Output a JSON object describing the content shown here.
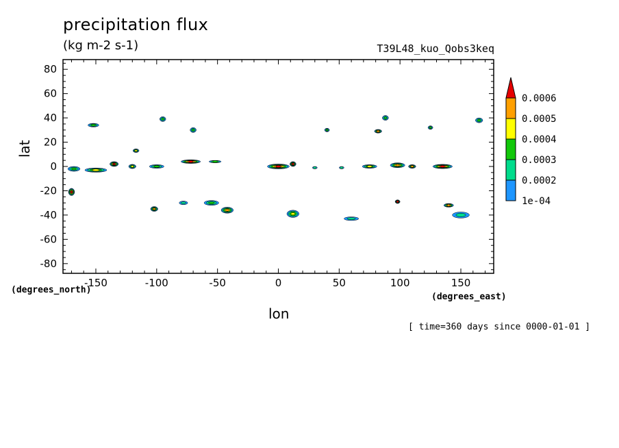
{
  "chart_data": {
    "type": "heatmap",
    "title": "precipitation flux",
    "subtitle": "(kg m-2 s-1)",
    "run_label": "T39L48_kuo_Qobs3keq",
    "xlabel": "lon",
    "ylabel": "lat",
    "x_unit_label": "(degrees_east)",
    "y_unit_label": "(degrees_north)",
    "time_note": "[ time=360 days since 0000-01-01 ]",
    "xlim": [
      -177,
      177
    ],
    "ylim": [
      -88,
      88
    ],
    "x_ticks": [
      -150,
      -100,
      -50,
      0,
      50,
      100,
      150
    ],
    "y_ticks": [
      -80,
      -60,
      -40,
      -20,
      0,
      20,
      40,
      60,
      80
    ],
    "x_tick_labels": [
      "-150",
      "-100",
      "-50",
      "0",
      "50",
      "100",
      "150"
    ],
    "y_tick_labels": [
      "-80",
      "-60",
      "-40",
      "-20",
      "0",
      "20",
      "40",
      "60",
      "80"
    ],
    "colorbar": {
      "levels": [
        0.0001,
        0.0002,
        0.0003,
        0.0004,
        0.0005,
        0.0006
      ],
      "labels": [
        "1e-04",
        "0.0002",
        "0.0003",
        "0.0004",
        "0.0005",
        "0.0006"
      ],
      "colors": [
        "#1e96ff",
        "#00dc8c",
        "#12c80a",
        "#ffff00",
        "#ffa000",
        "#e60000"
      ],
      "extend": "max"
    },
    "features": [
      {
        "lon": -168,
        "lat": -2,
        "wlon": 10,
        "wlat": 4,
        "level": 2
      },
      {
        "lon": -150,
        "lat": -3,
        "wlon": 18,
        "wlat": 3.5,
        "level": 3
      },
      {
        "lon": -135,
        "lat": 2,
        "wlon": 7,
        "wlat": 4,
        "level": 5
      },
      {
        "lon": -120,
        "lat": 0,
        "wlon": 6,
        "wlat": 3.5,
        "level": 3
      },
      {
        "lon": -100,
        "lat": 0,
        "wlon": 12,
        "wlat": 3,
        "level": 2
      },
      {
        "lon": -72,
        "lat": 4,
        "wlon": 16,
        "wlat": 3,
        "level": 5
      },
      {
        "lon": -52,
        "lat": 4,
        "wlon": 10,
        "wlat": 2,
        "level": 2
      },
      {
        "lon": 0,
        "lat": 0,
        "wlon": 18,
        "wlat": 4,
        "level": 5
      },
      {
        "lon": 12,
        "lat": 2,
        "wlon": 5,
        "wlat": 4,
        "level": 5
      },
      {
        "lon": 30,
        "lat": -1,
        "wlon": 4,
        "wlat": 2,
        "level": 1
      },
      {
        "lon": 52,
        "lat": -1,
        "wlon": 4,
        "wlat": 2,
        "level": 1
      },
      {
        "lon": 75,
        "lat": 0,
        "wlon": 12,
        "wlat": 3,
        "level": 3
      },
      {
        "lon": 98,
        "lat": 1,
        "wlon": 12,
        "wlat": 4,
        "level": 4
      },
      {
        "lon": 110,
        "lat": 0,
        "wlon": 6,
        "wlat": 3,
        "level": 4
      },
      {
        "lon": 135,
        "lat": 0,
        "wlon": 16,
        "wlat": 3.5,
        "level": 5
      },
      {
        "lon": -170,
        "lat": -21,
        "wlon": 5,
        "wlat": 6,
        "level": 5
      },
      {
        "lon": -102,
        "lat": -35,
        "wlon": 6,
        "wlat": 4,
        "level": 4
      },
      {
        "lon": -55,
        "lat": -30,
        "wlon": 12,
        "wlat": 4,
        "level": 2
      },
      {
        "lon": -42,
        "lat": -36,
        "wlon": 10,
        "wlat": 5,
        "level": 4
      },
      {
        "lon": 12,
        "lat": -39,
        "wlon": 10,
        "wlat": 6,
        "level": 3
      },
      {
        "lon": 98,
        "lat": -29,
        "wlon": 4,
        "wlat": 3,
        "level": 5
      },
      {
        "lon": 140,
        "lat": -32,
        "wlon": 8,
        "wlat": 3,
        "level": 4
      },
      {
        "lon": -152,
        "lat": 34,
        "wlon": 9,
        "wlat": 3,
        "level": 2
      },
      {
        "lon": -117,
        "lat": 13,
        "wlon": 5,
        "wlat": 3,
        "level": 3
      },
      {
        "lon": -95,
        "lat": 39,
        "wlon": 5,
        "wlat": 4,
        "level": 2
      },
      {
        "lon": -70,
        "lat": 30,
        "wlon": 5,
        "wlat": 4,
        "level": 2
      },
      {
        "lon": 40,
        "lat": 30,
        "wlon": 4,
        "wlat": 3,
        "level": 2
      },
      {
        "lon": 82,
        "lat": 29,
        "wlon": 6,
        "wlat": 3,
        "level": 4
      },
      {
        "lon": 88,
        "lat": 40,
        "wlon": 5,
        "wlat": 4,
        "level": 2
      },
      {
        "lon": 125,
        "lat": 32,
        "wlon": 4,
        "wlat": 3,
        "level": 2
      },
      {
        "lon": 165,
        "lat": 38,
        "wlon": 6,
        "wlat": 4,
        "level": 2
      },
      {
        "lon": 150,
        "lat": -40,
        "wlon": 14,
        "wlat": 5,
        "level": 1
      },
      {
        "lon": 60,
        "lat": -43,
        "wlon": 12,
        "wlat": 3,
        "level": 1
      },
      {
        "lon": -78,
        "lat": -30,
        "wlon": 7,
        "wlat": 3,
        "level": 1
      }
    ]
  }
}
